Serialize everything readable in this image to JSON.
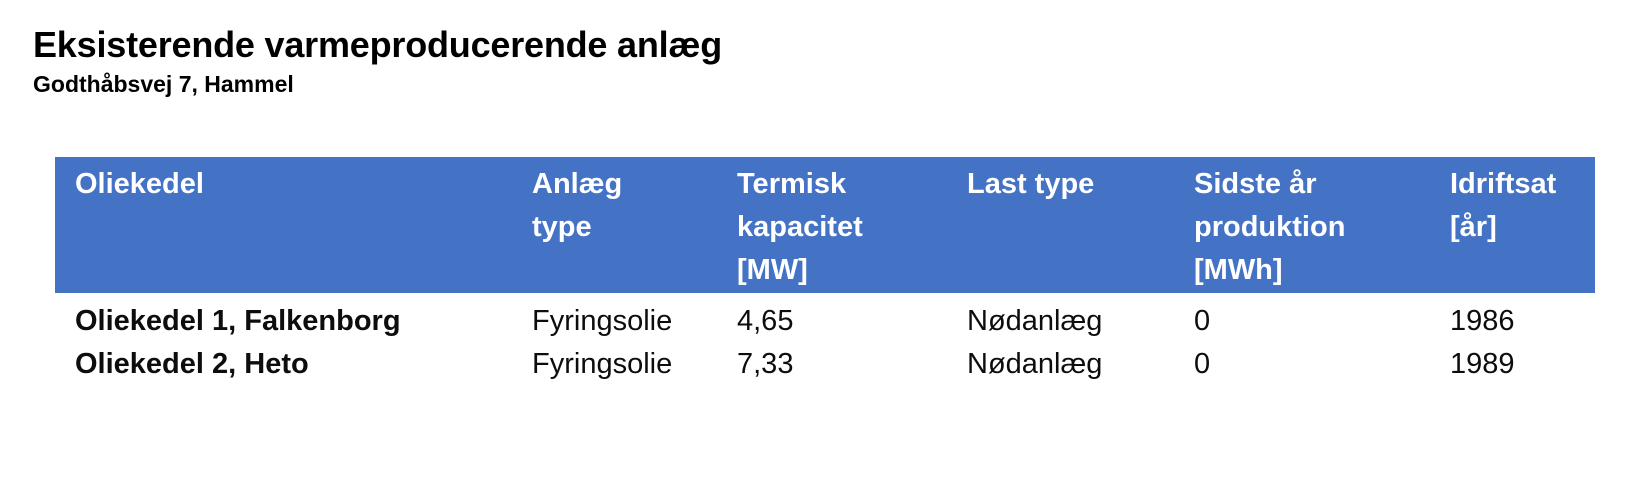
{
  "page": {
    "title": "Eksisterende varmeproducerende anlæg",
    "subtitle": "Godthåbsvej 7, Hammel"
  },
  "colors": {
    "header_background": "#4472C4",
    "header_text": "#FFFFFF",
    "body_text": "#0D0D0D"
  },
  "table": {
    "columns": [
      "Oliekedel",
      "Anlæg\ntype",
      "Termisk\nkapacitet\n[MW]",
      "Last type",
      "Sidste år\nproduktion\n[MWh]",
      "Idriftsat\n[år]"
    ],
    "rows": [
      [
        "Oliekedel 1, Falkenborg",
        "Fyringsolie",
        "4,65",
        "Nødanlæg",
        "0",
        "1986"
      ],
      [
        "Oliekedel 2, Heto",
        "Fyringsolie",
        "7,33",
        "Nødanlæg",
        "0",
        "1989"
      ]
    ]
  }
}
